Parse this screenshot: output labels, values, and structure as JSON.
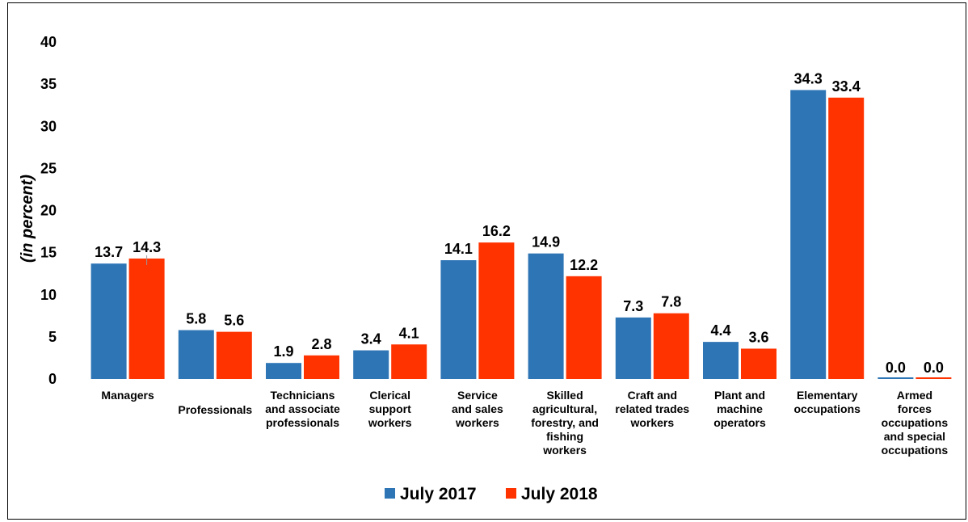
{
  "chart_data": {
    "type": "bar",
    "ylabel": "(in percent)",
    "ylim": [
      0,
      40
    ],
    "yticks": [
      0,
      5,
      10,
      15,
      20,
      25,
      30,
      35,
      40
    ],
    "grid": false,
    "legend_position": "bottom",
    "categories": [
      "Managers",
      "Professionals",
      "Technicians and associate professionals",
      "Clerical support workers",
      "Service and sales workers",
      "Skilled agricultural, forestry, and fishing workers",
      "Craft and related trades workers",
      "Plant and machine operators",
      "Elementary occupations",
      "Armed forces occupations and special occupations"
    ],
    "category_lines": [
      [
        "Managers"
      ],
      [
        "Professionals"
      ],
      [
        "Technicians",
        "and associate",
        "professionals"
      ],
      [
        "Clerical",
        "support",
        "workers"
      ],
      [
        "Service",
        "and sales",
        "workers"
      ],
      [
        "Skilled",
        "agricultural,",
        "forestry, and",
        "fishing",
        "workers"
      ],
      [
        "Craft and",
        "related trades",
        "workers"
      ],
      [
        "Plant and",
        "machine",
        "operators"
      ],
      [
        "Elementary",
        "occupations"
      ],
      [
        "Armed",
        "forces",
        "occupations",
        "and special",
        "occupations"
      ]
    ],
    "series": [
      {
        "name": "July 2017",
        "color": "#2E75B6",
        "values": [
          13.7,
          5.8,
          1.9,
          3.4,
          14.1,
          14.9,
          7.3,
          4.4,
          34.3,
          0.0
        ],
        "labels": [
          "13.7",
          "5.8",
          "1.9",
          "3.4",
          "14.1",
          "14.9",
          "7.3",
          "4.4",
          "34.3",
          "0.0"
        ]
      },
      {
        "name": "July 2018",
        "color": "#FF3300",
        "values": [
          14.3,
          5.6,
          2.8,
          4.1,
          16.2,
          12.2,
          7.8,
          3.6,
          33.4,
          0.0
        ],
        "labels": [
          "14.3",
          "5.6",
          "2.8",
          "4.1",
          "16.2",
          "12.2",
          "7.8",
          "3.6",
          "33.4",
          "0.0"
        ]
      }
    ]
  }
}
